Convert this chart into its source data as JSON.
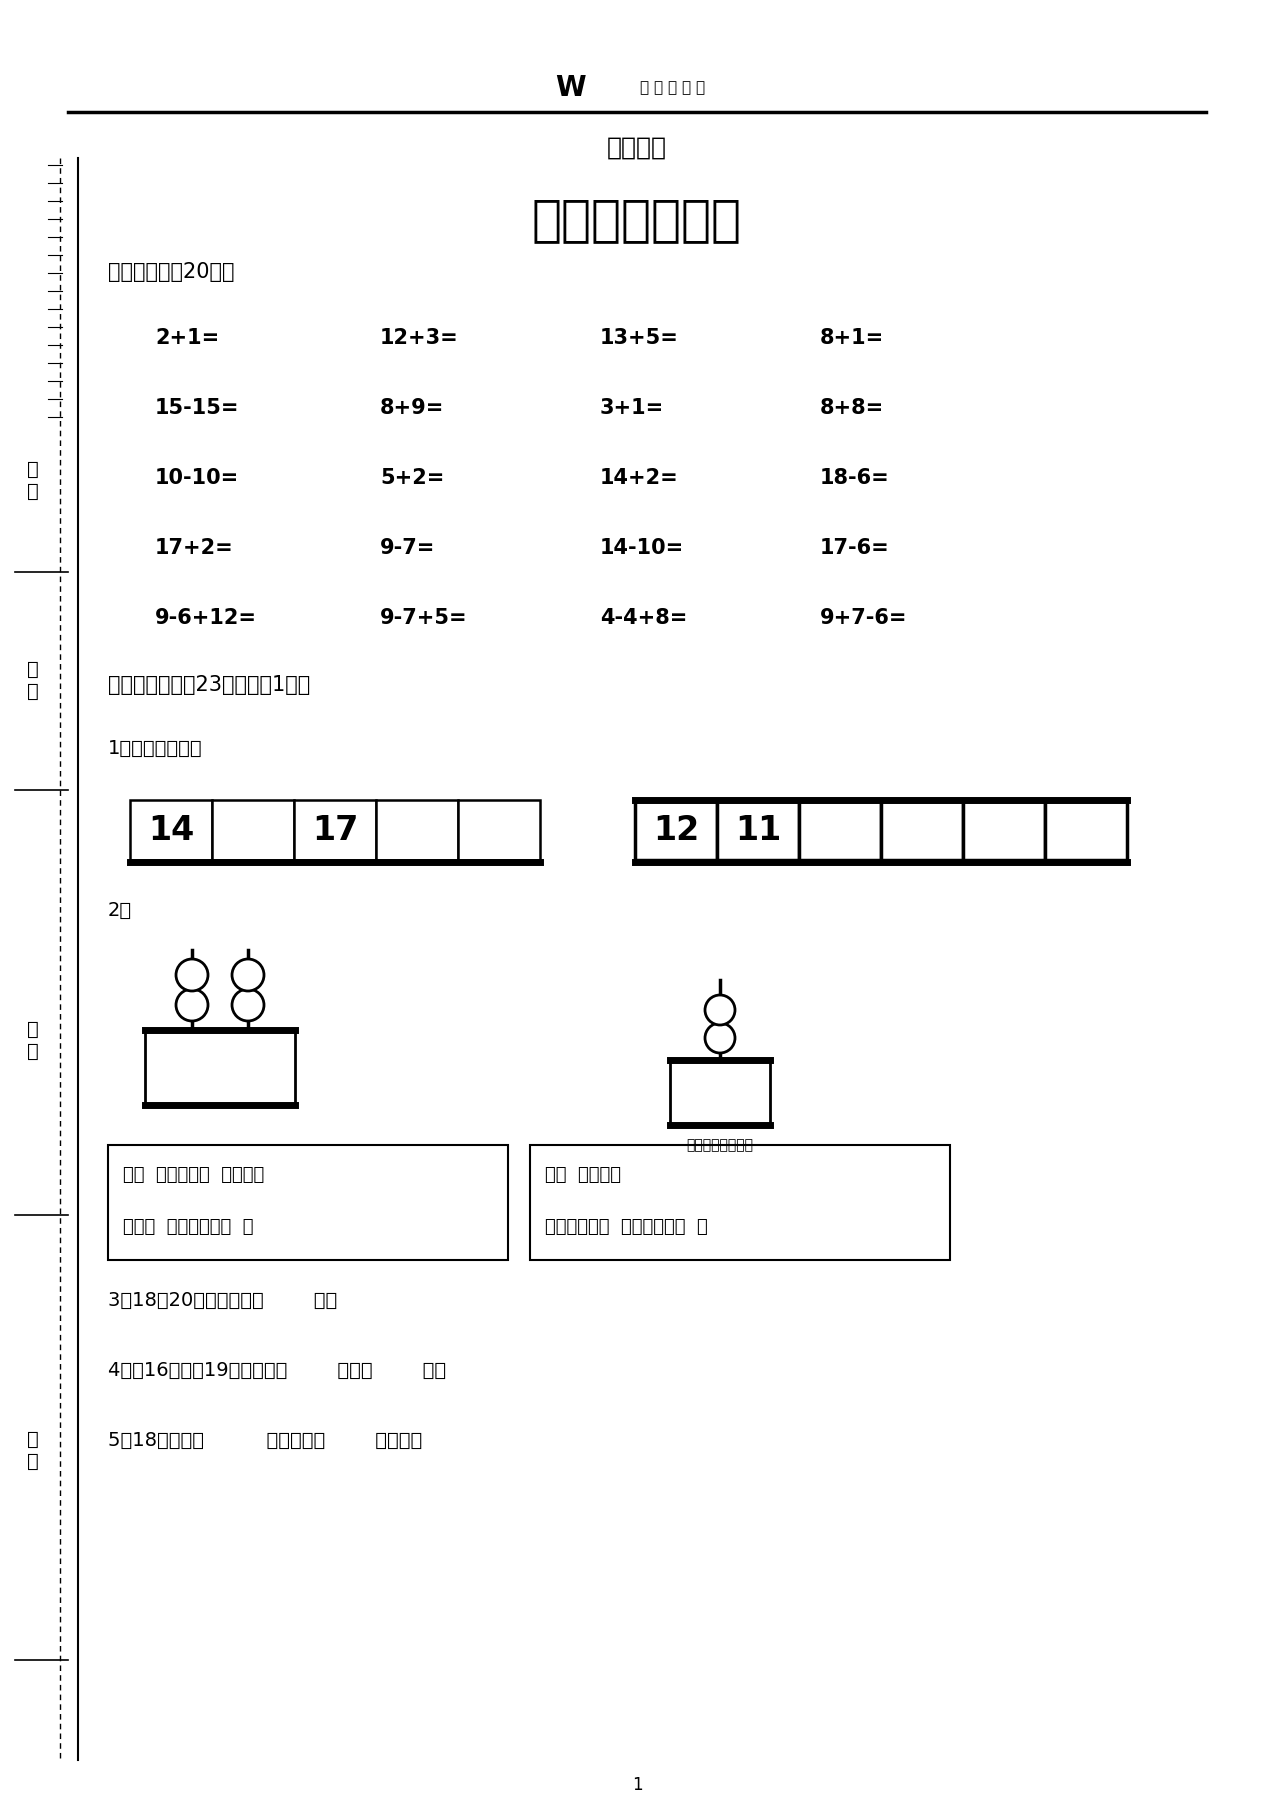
{
  "bg_color": "#ffffff",
  "header_text": "书 林 工 作 坊",
  "title1": "期末考试",
  "title2": "一年级数学试卷",
  "section1_title": "一、口算。（20分）",
  "math_rows": [
    [
      "2+1=",
      "12+3=",
      "13+5=",
      "8+1="
    ],
    [
      "15-15=",
      "8+9=",
      "3+1=",
      "8+8="
    ],
    [
      "10-10=",
      "5+2=",
      "14+2=",
      "18-6="
    ],
    [
      "17+2=",
      "9-7=",
      "14-10=",
      "17-6="
    ],
    [
      "9-6+12=",
      "9-7+5=",
      "4-4+8=",
      "9+7-6="
    ]
  ],
  "section2_title": "二、填一填。（23分，每空1分）",
  "sub1_title": "1、按规律填数。",
  "sub2_title": "2、",
  "box1_numbers": [
    "14",
    "",
    "17",
    "",
    ""
  ],
  "box2_numbers": [
    "12",
    "11",
    "",
    "",
    "",
    ""
  ],
  "abacus_label": "十位个位十位个位",
  "lbox_line1": "有（  ）个十和（  ）个一的",
  "lbox_line2": "是：（  ），读作：（  ）",
  "rbox_line1": "有（  ）个十。",
  "rbox_line2": "这个数是：（  ），读作：（  ）",
  "sub3_text": "3、18和20中间的数是（        ）。",
  "sub4_text": "4、比16大、比19小的数是（        ）和（        ）。",
  "sub5_text": "5、18里面有（          ）个十，（        ）个一。",
  "left_label_1": "号\n考",
  "left_label_2": "名\n姓",
  "left_label_3": "别\n班",
  "left_label_4": "校\n学",
  "page_num": "1"
}
